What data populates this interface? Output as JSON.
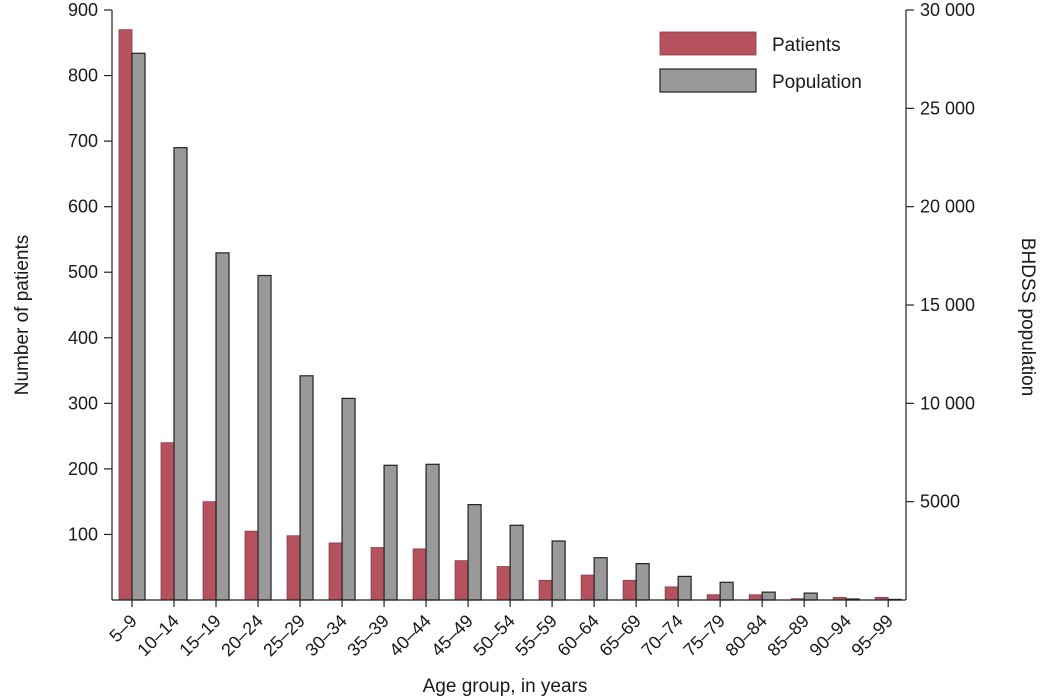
{
  "chart_data": {
    "type": "bar",
    "categories": [
      "5–9",
      "10–14",
      "15–19",
      "20–24",
      "25–29",
      "30–34",
      "35–39",
      "40–44",
      "45–49",
      "50–54",
      "55–59",
      "60–64",
      "65–69",
      "70–74",
      "75–79",
      "80–84",
      "85–89",
      "90–94",
      "95–99"
    ],
    "series": [
      {
        "name": "Patients",
        "axis": "left",
        "color": "#b5525d",
        "values": [
          870,
          240,
          150,
          105,
          98,
          87,
          80,
          78,
          60,
          51,
          30,
          38,
          30,
          20,
          8,
          8,
          2,
          4,
          4
        ]
      },
      {
        "name": "Population",
        "axis": "right",
        "color": "#999999",
        "values": [
          27800,
          23000,
          17650,
          16500,
          11400,
          10250,
          6850,
          6900,
          4850,
          3800,
          3000,
          2150,
          1850,
          1200,
          900,
          400,
          350,
          50,
          30
        ]
      }
    ],
    "xlabel": "Age group, in years",
    "ylabel": "Number of patients",
    "y2label": "BHDSS population",
    "ylim": [
      0,
      900
    ],
    "y2lim": [
      0,
      30000
    ],
    "yticks": [
      100,
      200,
      300,
      400,
      500,
      600,
      700,
      800,
      900
    ],
    "yticklabels": [
      "100",
      "200",
      "300",
      "400",
      "500",
      "600",
      "700",
      "800",
      "900"
    ],
    "y2ticks": [
      5000,
      10000,
      15000,
      20000,
      25000,
      30000
    ],
    "y2ticklabels": [
      "5000",
      "10 000",
      "15 000",
      "20 000",
      "25 000",
      "30 000"
    ],
    "grid": false,
    "legend_position": "top-right"
  }
}
